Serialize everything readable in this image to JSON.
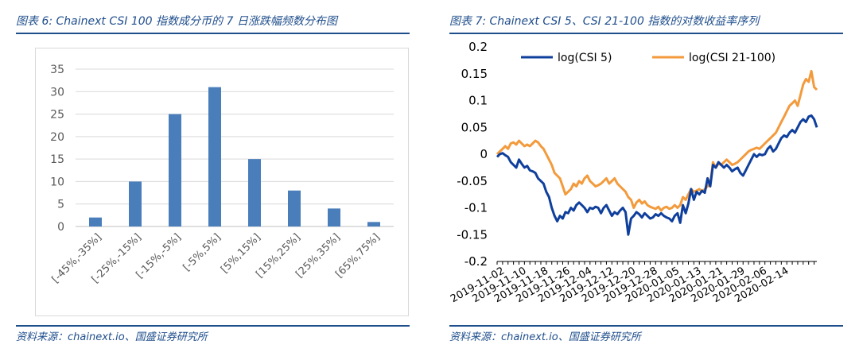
{
  "left": {
    "caption": "图表 6: Chainext CSI 100 指数成分币的 7 日涨跌幅频数分布图",
    "source": "资料来源：chainext.io、国盛证券研究所"
  },
  "right": {
    "caption": "图表 7: Chainext CSI 5、CSI 21-100 指数的对数收益率序列",
    "source": "资料来源：chainext.io、国盛证券研究所"
  },
  "chart_data": [
    {
      "type": "bar",
      "title": "",
      "categories": [
        "[-45%,-35%]",
        "[-25%,-15%]",
        "[-15%,-5%]",
        "[-5%,5%]",
        "[5%,15%]",
        "[15%,25%]",
        "[25%,35%]",
        "[65%,75%]"
      ],
      "values": [
        2,
        10,
        25,
        31,
        15,
        8,
        4,
        1
      ],
      "ylim": [
        0,
        35
      ],
      "yticks": [
        "0",
        "5",
        "10",
        "15",
        "20",
        "25",
        "30",
        "35"
      ],
      "grid": true,
      "color": "#4a7ebb",
      "xlabel": "",
      "ylabel": ""
    },
    {
      "type": "line",
      "title": "",
      "ylim": [
        -0.2,
        0.2
      ],
      "yticks": [
        "-0.2",
        "-0.15",
        "-0.1",
        "-0.05",
        "0",
        "0.05",
        "0.1",
        "0.15",
        "0.2"
      ],
      "xticks": [
        "2019-11-02",
        "2019-11-10",
        "2019-11-18",
        "2019-11-26",
        "2019-12-04",
        "2019-12-12",
        "2019-12-20",
        "2019-12-28",
        "2020-01-05",
        "2020-01-13",
        "2020-01-21",
        "2020-01-29",
        "2020-02-06",
        "2020-02-14"
      ],
      "x_start": "2019-11-02",
      "x_step_days": 1,
      "legend_position": "top-left",
      "grid": false,
      "series": [
        {
          "name": "log(CSI 5)",
          "color": "#0f3f9c",
          "values": [
            -0.005,
            0.0,
            0.002,
            -0.002,
            -0.005,
            -0.015,
            -0.02,
            -0.025,
            -0.01,
            -0.018,
            -0.025,
            -0.022,
            -0.03,
            -0.032,
            -0.035,
            -0.045,
            -0.05,
            -0.055,
            -0.07,
            -0.08,
            -0.1,
            -0.115,
            -0.125,
            -0.115,
            -0.12,
            -0.108,
            -0.11,
            -0.1,
            -0.105,
            -0.095,
            -0.09,
            -0.095,
            -0.1,
            -0.108,
            -0.1,
            -0.102,
            -0.098,
            -0.1,
            -0.11,
            -0.1,
            -0.095,
            -0.105,
            -0.115,
            -0.108,
            -0.112,
            -0.105,
            -0.1,
            -0.108,
            -0.15,
            -0.12,
            -0.115,
            -0.108,
            -0.112,
            -0.118,
            -0.11,
            -0.115,
            -0.12,
            -0.118,
            -0.112,
            -0.115,
            -0.11,
            -0.115,
            -0.118,
            -0.12,
            -0.125,
            -0.115,
            -0.11,
            -0.128,
            -0.095,
            -0.11,
            -0.092,
            -0.065,
            -0.085,
            -0.07,
            -0.075,
            -0.068,
            -0.072,
            -0.045,
            -0.06,
            -0.02,
            -0.025,
            -0.015,
            -0.02,
            -0.025,
            -0.02,
            -0.025,
            -0.032,
            -0.028,
            -0.025,
            -0.035,
            -0.04,
            -0.03,
            -0.02,
            -0.01,
            0.0,
            -0.005,
            0.0,
            -0.002,
            0.0,
            0.01,
            0.015,
            0.005,
            0.01,
            0.02,
            0.03,
            0.035,
            0.032,
            0.04,
            0.045,
            0.04,
            0.05,
            0.06,
            0.065,
            0.06,
            0.07,
            0.072,
            0.065,
            0.05
          ]
        },
        {
          "name": "log(CSI 21-100)",
          "color": "#f39a3c",
          "values": [
            0.0,
            0.005,
            0.01,
            0.015,
            0.01,
            0.02,
            0.022,
            0.018,
            0.025,
            0.02,
            0.015,
            0.018,
            0.015,
            0.02,
            0.025,
            0.022,
            0.015,
            0.01,
            0.0,
            -0.01,
            -0.02,
            -0.035,
            -0.04,
            -0.045,
            -0.06,
            -0.075,
            -0.07,
            -0.065,
            -0.055,
            -0.06,
            -0.05,
            -0.055,
            -0.045,
            -0.04,
            -0.05,
            -0.055,
            -0.06,
            -0.058,
            -0.055,
            -0.05,
            -0.045,
            -0.055,
            -0.05,
            -0.045,
            -0.055,
            -0.06,
            -0.065,
            -0.07,
            -0.08,
            -0.085,
            -0.1,
            -0.09,
            -0.085,
            -0.092,
            -0.088,
            -0.095,
            -0.098,
            -0.1,
            -0.102,
            -0.098,
            -0.105,
            -0.1,
            -0.098,
            -0.102,
            -0.1,
            -0.095,
            -0.1,
            -0.095,
            -0.08,
            -0.085,
            -0.075,
            -0.065,
            -0.07,
            -0.068,
            -0.065,
            -0.07,
            -0.065,
            -0.06,
            -0.055,
            -0.015,
            -0.025,
            -0.018,
            -0.02,
            -0.015,
            -0.01,
            -0.015,
            -0.02,
            -0.018,
            -0.015,
            -0.01,
            -0.005,
            0.0,
            0.005,
            0.008,
            0.01,
            0.012,
            0.01,
            0.015,
            0.02,
            0.025,
            0.03,
            0.035,
            0.04,
            0.05,
            0.06,
            0.07,
            0.08,
            0.09,
            0.095,
            0.1,
            0.09,
            0.11,
            0.13,
            0.14,
            0.135,
            0.155,
            0.125,
            0.12
          ]
        }
      ]
    }
  ]
}
